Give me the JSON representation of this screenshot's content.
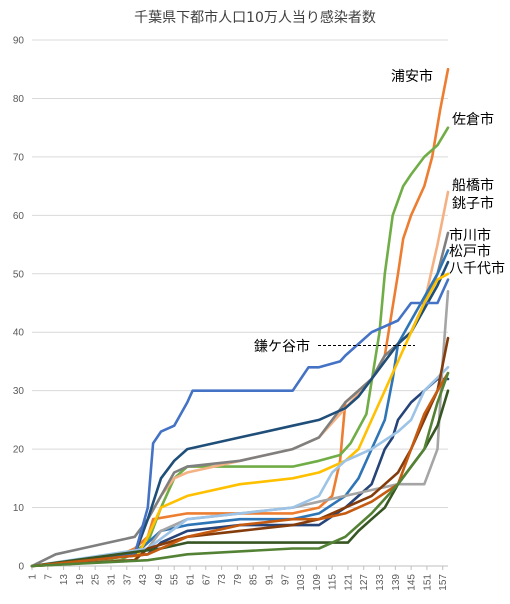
{
  "chart_data": {
    "type": "line",
    "title": "千葉県下都市人口10万人当り感染者数",
    "xlabel": "",
    "ylabel": "",
    "ylim": [
      0,
      90
    ],
    "xlim": [
      1,
      159
    ],
    "y_ticks": [
      0,
      10,
      20,
      30,
      40,
      50,
      60,
      70,
      80,
      90
    ],
    "x_ticks": [
      1,
      7,
      13,
      19,
      25,
      31,
      37,
      43,
      49,
      55,
      61,
      67,
      73,
      79,
      85,
      91,
      97,
      103,
      109,
      115,
      121,
      127,
      133,
      139,
      145,
      151,
      157
    ],
    "grid": "horizontal",
    "labels": [
      {
        "text": "浦安市"
      },
      {
        "text": "佐倉市"
      },
      {
        "text": "船橋市"
      },
      {
        "text": "銚子市"
      },
      {
        "text": "市川市"
      },
      {
        "text": "松戸市"
      },
      {
        "text": "八千代市"
      },
      {
        "text": "鎌ケ谷市"
      }
    ],
    "series": [
      {
        "name": "浦安市",
        "color": "#ED7D31",
        "x": [
          1,
          30,
          40,
          45,
          47,
          60,
          80,
          100,
          110,
          115,
          118,
          120,
          125,
          130,
          135,
          140,
          142,
          145,
          150,
          153,
          156,
          159
        ],
        "y": [
          0,
          1,
          3,
          5,
          8,
          9,
          9,
          9,
          10,
          12,
          18,
          28,
          30,
          32,
          36,
          50,
          56,
          60,
          65,
          70,
          78,
          85
        ]
      },
      {
        "name": "佐倉市",
        "color": "#70AD47",
        "x": [
          1,
          35,
          45,
          50,
          55,
          60,
          80,
          100,
          110,
          118,
          122,
          128,
          133,
          135,
          138,
          142,
          145,
          150,
          155,
          159
        ],
        "y": [
          0,
          1,
          4,
          10,
          15,
          17,
          17,
          17,
          18,
          19,
          21,
          26,
          40,
          50,
          60,
          65,
          67,
          70,
          72,
          75
        ]
      },
      {
        "name": "船橋市",
        "color": "#F4B183",
        "x": [
          1,
          40,
          45,
          50,
          55,
          60,
          80,
          100,
          110,
          120,
          130,
          140,
          145,
          150,
          155,
          159
        ],
        "y": [
          0,
          2,
          8,
          12,
          15,
          16,
          18,
          20,
          22,
          27,
          32,
          38,
          40,
          45,
          55,
          64
        ]
      },
      {
        "name": "銚子市",
        "color": "#7F7F7F",
        "x": [
          1,
          10,
          20,
          30,
          40,
          45,
          50,
          55,
          60,
          80,
          100,
          110,
          115,
          120,
          130,
          135,
          140,
          145,
          150,
          155,
          159
        ],
        "y": [
          0,
          2,
          3,
          4,
          5,
          8,
          12,
          16,
          17,
          18,
          20,
          22,
          25,
          28,
          32,
          36,
          38,
          40,
          45,
          50,
          57
        ]
      },
      {
        "name": "市川市",
        "color": "#2E75B6",
        "x": [
          1,
          40,
          45,
          50,
          60,
          80,
          100,
          110,
          120,
          125,
          130,
          135,
          138,
          140,
          145,
          150,
          155,
          159
        ],
        "y": [
          0,
          2,
          4,
          6,
          7,
          8,
          8,
          9,
          12,
          15,
          20,
          25,
          32,
          38,
          42,
          46,
          50,
          54
        ]
      },
      {
        "name": "松戸市",
        "color": "#1F4E79",
        "x": [
          1,
          40,
          45,
          50,
          55,
          60,
          80,
          100,
          110,
          115,
          120,
          125,
          130,
          135,
          140,
          145,
          150,
          155,
          159
        ],
        "y": [
          0,
          2,
          8,
          15,
          18,
          20,
          22,
          24,
          25,
          26,
          27,
          29,
          32,
          35,
          38,
          40,
          44,
          48,
          52
        ]
      },
      {
        "name": "八千代市",
        "color": "#4472C4",
        "x": [
          1,
          40,
          45,
          47,
          50,
          55,
          60,
          62,
          80,
          100,
          106,
          110,
          118,
          120,
          130,
          140,
          145,
          150,
          155,
          159
        ],
        "y": [
          0,
          2,
          10,
          21,
          23,
          24,
          28,
          30,
          30,
          30,
          34,
          34,
          35,
          36,
          40,
          42,
          45,
          45,
          45,
          49
        ]
      },
      {
        "name": "鎌ケ谷市",
        "color": "#264478",
        "x": [
          1,
          45,
          50,
          60,
          80,
          100,
          110,
          120,
          125,
          130,
          135,
          138,
          140,
          145,
          150,
          155,
          159
        ],
        "y": [
          0,
          2,
          4,
          6,
          7,
          7,
          7,
          10,
          12,
          14,
          20,
          22,
          25,
          28,
          30,
          32,
          32
        ]
      },
      {
        "name": "",
        "color": "#FFC000",
        "x": [
          1,
          40,
          45,
          50,
          60,
          80,
          100,
          110,
          120,
          125,
          130,
          135,
          140,
          145,
          150,
          155,
          159
        ],
        "y": [
          0,
          1,
          5,
          10,
          12,
          14,
          15,
          16,
          18,
          20,
          25,
          30,
          35,
          40,
          45,
          49,
          50
        ]
      },
      {
        "name": "",
        "color": "#A5A5A5",
        "x": [
          1,
          40,
          45,
          50,
          60,
          80,
          100,
          110,
          120,
          130,
          140,
          145,
          150,
          155,
          157,
          159
        ],
        "y": [
          0,
          1,
          3,
          6,
          8,
          9,
          10,
          11,
          12,
          13,
          14,
          14,
          14,
          20,
          35,
          47
        ]
      },
      {
        "name": "",
        "color": "#9DC3E6",
        "x": [
          1,
          45,
          60,
          80,
          100,
          110,
          115,
          120,
          125,
          130,
          140,
          145,
          150,
          159
        ],
        "y": [
          0,
          3,
          8,
          9,
          10,
          12,
          16,
          18,
          19,
          20,
          23,
          25,
          30,
          34
        ]
      },
      {
        "name": "",
        "color": "#843C0C",
        "x": [
          1,
          40,
          45,
          60,
          80,
          100,
          110,
          120,
          130,
          140,
          145,
          150,
          155,
          159
        ],
        "y": [
          0,
          1,
          3,
          5,
          6,
          7,
          8,
          10,
          12,
          16,
          20,
          25,
          30,
          39
        ]
      },
      {
        "name": "",
        "color": "#375623",
        "x": [
          1,
          50,
          60,
          100,
          110,
          118,
          121,
          125,
          130,
          135,
          140,
          145,
          150,
          155,
          159
        ],
        "y": [
          0,
          3,
          4,
          4,
          4,
          4,
          4,
          6,
          8,
          10,
          14,
          17,
          20,
          24,
          30
        ]
      },
      {
        "name": "",
        "color": "#C55A11",
        "x": [
          1,
          45,
          60,
          80,
          100,
          110,
          120,
          130,
          140,
          145,
          150,
          155,
          159
        ],
        "y": [
          0,
          2,
          5,
          7,
          8,
          8,
          9,
          11,
          14,
          20,
          26,
          30,
          33
        ]
      },
      {
        "name": "",
        "color": "#548235",
        "x": [
          1,
          45,
          60,
          100,
          110,
          120,
          130,
          140,
          150,
          155,
          159
        ],
        "y": [
          0,
          1,
          2,
          3,
          3,
          5,
          9,
          14,
          20,
          28,
          33
        ]
      }
    ]
  }
}
